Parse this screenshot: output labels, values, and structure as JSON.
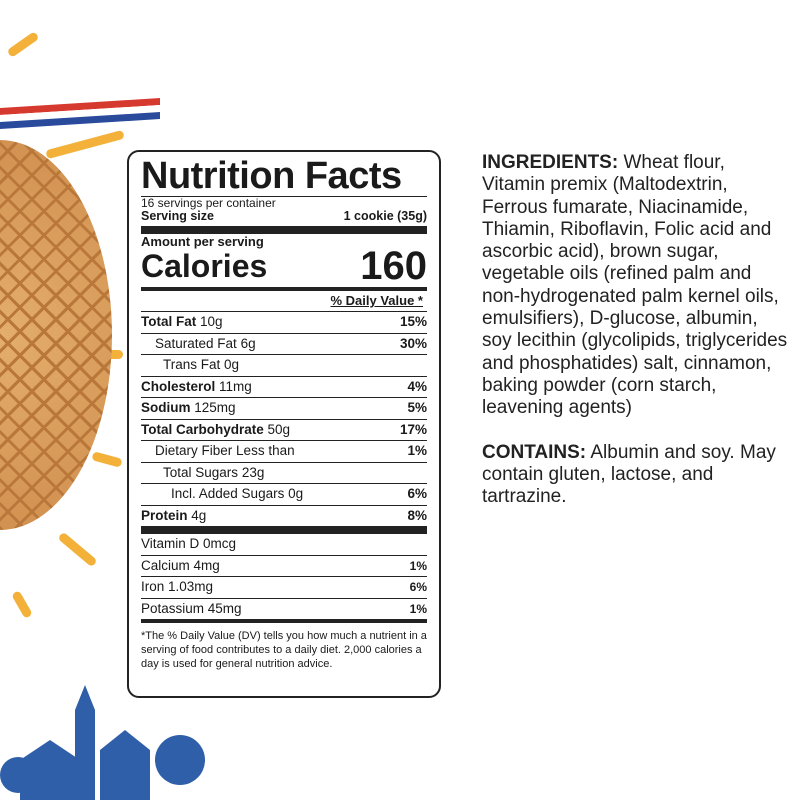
{
  "label": {
    "title": "Nutrition Facts",
    "servings": "16 servings per container",
    "serving_size_label": "Serving size",
    "serving_size_value": "1 cookie (35g)",
    "amount_per_serving": "Amount per serving",
    "calories_label": "Calories",
    "calories_value": "160",
    "dv_header": "% Daily Value *",
    "nutrients": [
      {
        "name": "Total Fat",
        "amount": "10g",
        "dv": "15%"
      },
      {
        "name": "Saturated Fat",
        "amount": "6g",
        "dv": "30%"
      },
      {
        "name": "Trans Fat",
        "amount": "0g",
        "dv": ""
      },
      {
        "name": "Cholesterol",
        "amount": "11mg",
        "dv": "4%"
      },
      {
        "name": "Sodium",
        "amount": "125mg",
        "dv": "5%"
      },
      {
        "name": "Total Carbohydrate",
        "amount": "50g",
        "dv": "17%"
      },
      {
        "name": "Dietary Fiber",
        "amount": "Less than",
        "dv": "1%"
      },
      {
        "name": "Total Sugars",
        "amount": "23g",
        "dv": ""
      },
      {
        "name": "Incl. Added Sugars",
        "amount": "0g",
        "dv": "6%"
      },
      {
        "name": "Protein",
        "amount": "4g",
        "dv": "8%"
      }
    ],
    "vitamins": [
      {
        "name": "Vitamin D 0mcg",
        "dv": ""
      },
      {
        "name": "Calcium 4mg",
        "dv": "1%"
      },
      {
        "name": "Iron 1.03mg",
        "dv": "6%"
      },
      {
        "name": "Potassium 45mg",
        "dv": "1%"
      }
    ],
    "footnote": "*The % Daily Value (DV) tells you how much a nutrient in a serving of food contributes to a daily diet. 2,000 calories a day is used for general nutrition advice."
  },
  "ingredients": {
    "heading": "INGREDIENTS:",
    "text": "Wheat flour, Vitamin premix (Maltodextrin, Ferrous fumarate, Niacinamide, Thiamin, Riboflavin, Folic acid and ascorbic acid), brown sugar, vegetable oils (refined palm and non-hydrogenated palm kernel oils, emulsifiers), D-glucose, albumin, soy lecithin (glycolipids, triglycerides and phosphatides) salt, cinnamon, baking powder (corn starch, leavening agents)"
  },
  "contains": {
    "heading": "CONTAINS:",
    "text": "Albumin and soy. May contain gluten, lactose, and tartrazine."
  }
}
